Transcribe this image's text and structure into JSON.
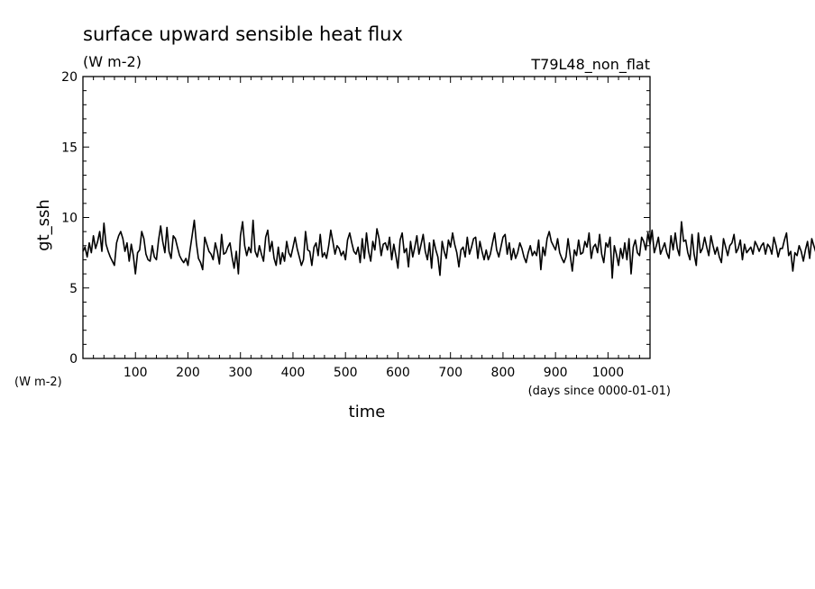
{
  "chart_data": {
    "type": "line",
    "title": "surface upward sensible heat flux",
    "units": "(W m-2)",
    "experiment": "T79L48_non_flat",
    "xlabel": "time",
    "x_units": "(days since 0000-01-01)",
    "ylabel": "gt_ssh",
    "y_units": "(W m-2)",
    "xlim": [
      0,
      1080
    ],
    "ylim": [
      0,
      20
    ],
    "x_ticks": [
      100,
      200,
      300,
      400,
      500,
      600,
      700,
      800,
      900,
      1000
    ],
    "y_ticks": [
      0,
      5,
      10,
      15,
      20
    ],
    "series": [
      {
        "x_start": 0,
        "x_step": 4,
        "color": "#000000",
        "y": [
          7.6,
          7.9,
          7.2,
          8.2,
          7.5,
          8.7,
          7.8,
          8.3,
          9.0,
          7.6,
          9.6,
          8.1,
          7.6,
          7.2,
          6.9,
          6.6,
          8.2,
          8.7,
          9.0,
          8.5,
          7.6,
          8.2,
          6.9,
          8.1,
          7.3,
          6.0,
          7.5,
          7.7,
          9.0,
          8.5,
          7.4,
          7.0,
          6.9,
          8.0,
          7.2,
          7.0,
          8.4,
          9.4,
          8.3,
          7.5,
          9.3,
          7.6,
          7.1,
          8.7,
          8.5,
          7.9,
          7.3,
          7.0,
          6.8,
          7.1,
          6.6,
          7.7,
          8.7,
          9.8,
          8.2,
          7.1,
          6.8,
          6.3,
          8.6,
          8.1,
          7.6,
          7.4,
          7.0,
          8.2,
          7.6,
          6.7,
          8.8,
          7.4,
          7.5,
          7.9,
          8.2,
          7.2,
          6.4,
          7.6,
          6.0,
          8.7,
          9.7,
          8.0,
          7.3,
          7.9,
          7.5,
          9.8,
          7.6,
          7.2,
          8.0,
          7.4,
          6.9,
          8.6,
          9.1,
          7.6,
          8.3,
          7.1,
          6.6,
          7.9,
          6.7,
          7.5,
          6.9,
          8.3,
          7.5,
          7.2,
          7.9,
          8.6,
          7.8,
          7.2,
          6.6,
          7.0,
          9.0,
          7.7,
          7.6,
          6.6,
          7.9,
          8.2,
          7.3,
          8.8,
          7.2,
          7.5,
          7.1,
          8.0,
          9.1,
          8.3,
          7.4,
          8.0,
          7.8,
          7.3,
          7.6,
          7.0,
          8.4,
          8.9,
          8.2,
          7.6,
          7.4,
          7.9,
          6.8,
          8.5,
          7.1,
          8.9,
          7.6,
          6.9,
          8.3,
          7.7,
          9.2,
          8.5,
          7.3,
          8.1,
          8.2,
          7.7,
          8.6,
          7.0,
          8.1,
          7.3,
          6.4,
          8.4,
          8.9,
          7.5,
          7.8,
          6.5,
          8.3,
          7.2,
          7.9,
          8.7,
          7.4,
          8.1,
          8.8,
          7.6,
          7.0,
          8.2,
          6.4,
          8.4,
          7.7,
          7.2,
          5.9,
          8.3,
          7.6,
          7.1,
          8.4,
          7.9,
          8.9,
          8.1,
          7.5,
          6.5,
          7.7,
          7.9,
          7.2,
          8.6,
          7.4,
          7.9,
          8.5,
          8.6,
          7.1,
          8.3,
          7.6,
          7.0,
          7.7,
          7.0,
          7.4,
          8.2,
          8.9,
          7.7,
          7.2,
          7.9,
          8.6,
          8.8,
          7.4,
          8.2,
          7.0,
          7.8,
          7.1,
          7.5,
          8.2,
          7.8,
          7.2,
          6.8,
          7.5,
          8.0,
          7.3,
          7.6,
          7.3,
          8.4,
          6.3,
          7.9,
          7.3,
          8.5,
          9.0,
          8.3,
          8.0,
          7.7,
          8.5,
          7.5,
          7.1,
          6.8,
          7.2,
          8.5,
          7.3,
          6.2,
          7.7,
          7.3,
          8.4,
          7.4,
          7.5,
          8.3,
          7.9,
          8.9,
          7.1,
          7.9,
          8.1,
          7.5,
          8.8,
          7.4,
          6.8,
          8.2,
          7.9,
          8.6,
          5.7,
          8.0,
          7.4,
          6.6,
          7.8,
          7.1,
          8.2,
          7.0,
          8.5,
          6.0,
          7.9,
          8.4,
          7.5,
          7.3,
          8.6,
          8.3,
          7.7,
          8.9,
          8.1,
          9.1,
          7.5,
          8.0,
          8.6,
          7.4,
          7.8,
          8.2,
          7.5,
          7.1,
          8.7,
          7.7,
          8.9,
          7.8,
          7.3,
          9.7,
          8.3,
          8.4,
          7.5,
          7.0,
          8.8,
          7.4,
          6.6,
          8.9,
          7.5,
          7.8,
          8.6,
          7.9,
          7.3,
          8.7,
          8.0,
          7.4,
          7.9,
          7.2,
          6.8,
          8.5,
          7.9,
          7.3,
          8.0,
          8.2,
          8.8,
          7.5,
          7.8,
          8.4,
          7.0,
          8.1,
          7.5,
          7.7,
          7.9,
          7.4,
          8.3,
          8.0,
          7.6,
          8.0,
          8.2,
          7.4,
          8.1,
          7.9,
          7.4,
          8.6,
          8.0,
          7.2,
          7.8,
          7.8,
          8.4,
          8.9,
          7.3,
          7.6,
          6.2,
          7.5,
          7.3,
          8.0,
          7.6,
          6.9,
          7.7,
          8.3,
          7.1,
          8.5,
          8.0,
          7.5,
          8.6,
          6.5,
          7.0,
          8.3,
          7.7,
          8.6,
          8.1,
          7.7,
          7.3,
          7.8,
          7.2
        ]
      }
    ],
    "grid": false
  }
}
